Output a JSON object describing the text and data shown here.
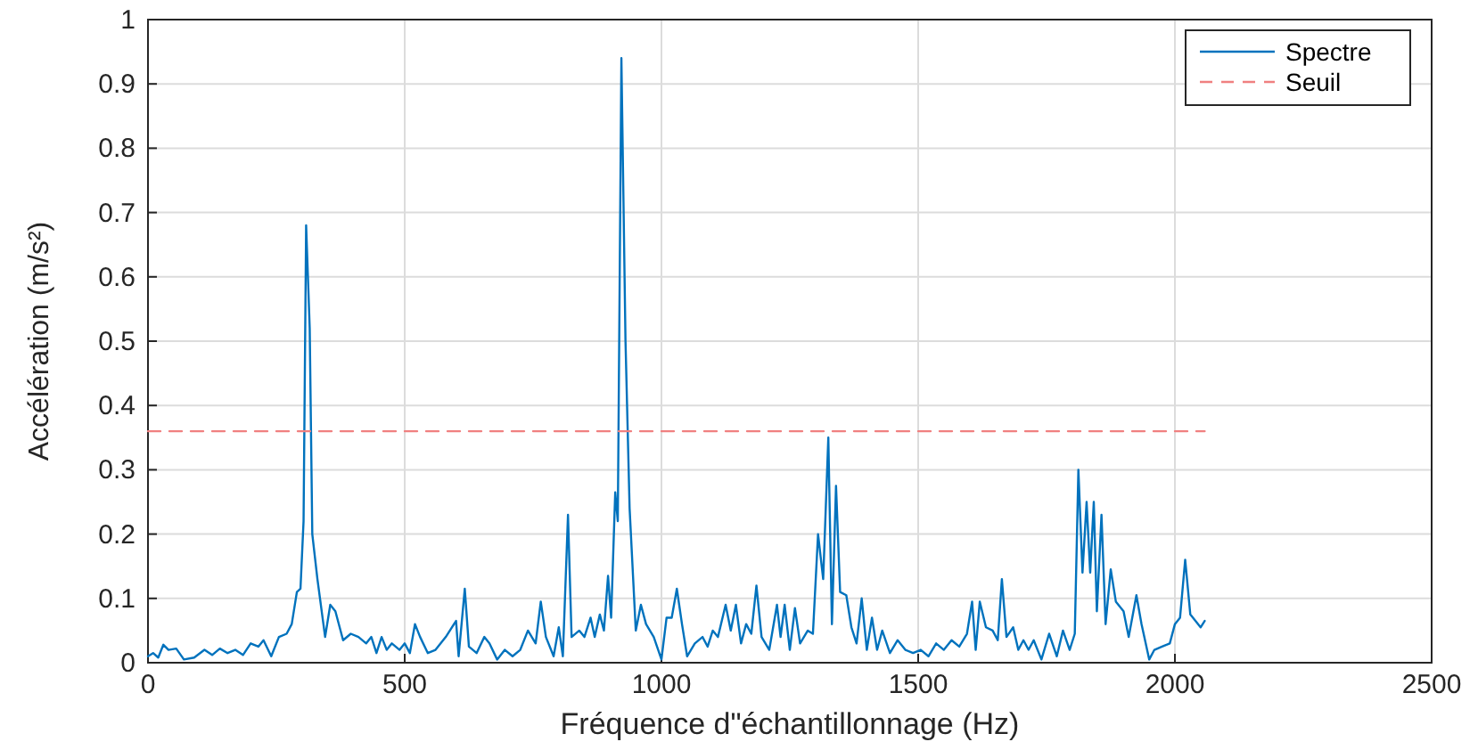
{
  "chart_data": {
    "type": "line",
    "xlabel": "Fréquence d\"échantillonnage (Hz)",
    "ylabel": "Accélération (m/s²)",
    "xlim": [
      0,
      2500
    ],
    "xticks": [
      0,
      500,
      1000,
      1500,
      2000,
      2500
    ],
    "ylim": [
      0,
      1
    ],
    "yticks": [
      0,
      0.1,
      0.2,
      0.3,
      0.4,
      0.5,
      0.6,
      0.7,
      0.8,
      0.9,
      1
    ],
    "grid": true,
    "legend": "top right",
    "marker": "none",
    "series": [
      {
        "name": "Spectre",
        "color": "#0072bd",
        "line_style": "solid",
        "x": [
          0,
          10,
          20,
          30,
          40,
          55,
          70,
          90,
          110,
          125,
          140,
          155,
          170,
          185,
          200,
          215,
          225,
          240,
          255,
          270,
          280,
          290,
          297,
          303,
          308,
          315,
          320,
          330,
          345,
          355,
          365,
          380,
          395,
          410,
          425,
          435,
          445,
          455,
          465,
          475,
          490,
          500,
          510,
          520,
          530,
          545,
          560,
          580,
          600,
          605,
          617,
          625,
          640,
          655,
          665,
          680,
          695,
          710,
          725,
          740,
          755,
          765,
          775,
          790,
          800,
          808,
          818,
          825,
          840,
          850,
          862,
          870,
          880,
          888,
          896,
          902,
          910,
          915,
          922,
          930,
          938,
          950,
          960,
          970,
          985,
          1000,
          1010,
          1020,
          1030,
          1040,
          1050,
          1065,
          1080,
          1090,
          1100,
          1110,
          1125,
          1135,
          1145,
          1155,
          1165,
          1175,
          1185,
          1195,
          1210,
          1225,
          1232,
          1240,
          1250,
          1260,
          1270,
          1285,
          1295,
          1305,
          1315,
          1325,
          1332,
          1340,
          1348,
          1360,
          1370,
          1380,
          1390,
          1400,
          1410,
          1420,
          1430,
          1445,
          1460,
          1475,
          1490,
          1505,
          1520,
          1535,
          1550,
          1565,
          1580,
          1595,
          1605,
          1612,
          1620,
          1632,
          1645,
          1655,
          1663,
          1672,
          1685,
          1695,
          1705,
          1715,
          1725,
          1740,
          1755,
          1770,
          1782,
          1795,
          1805,
          1812,
          1820,
          1828,
          1835,
          1842,
          1848,
          1857,
          1865,
          1875,
          1885,
          1900,
          1910,
          1925,
          1935,
          1950,
          1960,
          1975,
          1990,
          2000,
          2010,
          2020,
          2030,
          2040,
          2050,
          2058
        ],
        "values": [
          0.01,
          0.015,
          0.008,
          0.028,
          0.02,
          0.022,
          0.005,
          0.008,
          0.02,
          0.012,
          0.022,
          0.015,
          0.02,
          0.012,
          0.03,
          0.025,
          0.035,
          0.01,
          0.04,
          0.045,
          0.06,
          0.11,
          0.115,
          0.22,
          0.68,
          0.52,
          0.2,
          0.13,
          0.04,
          0.09,
          0.08,
          0.035,
          0.045,
          0.04,
          0.03,
          0.04,
          0.015,
          0.04,
          0.02,
          0.03,
          0.02,
          0.03,
          0.015,
          0.06,
          0.04,
          0.015,
          0.02,
          0.04,
          0.065,
          0.01,
          0.115,
          0.025,
          0.015,
          0.04,
          0.03,
          0.005,
          0.02,
          0.01,
          0.02,
          0.05,
          0.03,
          0.095,
          0.04,
          0.01,
          0.055,
          0.01,
          0.23,
          0.04,
          0.05,
          0.04,
          0.07,
          0.04,
          0.075,
          0.05,
          0.135,
          0.07,
          0.265,
          0.22,
          0.94,
          0.5,
          0.24,
          0.05,
          0.09,
          0.06,
          0.04,
          0.005,
          0.07,
          0.07,
          0.115,
          0.06,
          0.01,
          0.03,
          0.04,
          0.025,
          0.05,
          0.04,
          0.09,
          0.05,
          0.09,
          0.03,
          0.06,
          0.045,
          0.12,
          0.04,
          0.02,
          0.09,
          0.04,
          0.09,
          0.02,
          0.085,
          0.03,
          0.05,
          0.045,
          0.2,
          0.13,
          0.35,
          0.06,
          0.275,
          0.11,
          0.105,
          0.055,
          0.03,
          0.1,
          0.02,
          0.07,
          0.02,
          0.05,
          0.015,
          0.035,
          0.02,
          0.015,
          0.02,
          0.01,
          0.03,
          0.02,
          0.035,
          0.025,
          0.045,
          0.095,
          0.02,
          0.095,
          0.055,
          0.05,
          0.035,
          0.13,
          0.04,
          0.055,
          0.02,
          0.035,
          0.02,
          0.035,
          0.005,
          0.045,
          0.01,
          0.05,
          0.02,
          0.045,
          0.3,
          0.14,
          0.25,
          0.14,
          0.25,
          0.08,
          0.23,
          0.06,
          0.145,
          0.095,
          0.08,
          0.04,
          0.105,
          0.06,
          0.005,
          0.02,
          0.025,
          0.03,
          0.06,
          0.07,
          0.16,
          0.075,
          0.065,
          0.055,
          0.065
        ]
      },
      {
        "name": "Seuil",
        "color": "#f08080",
        "line_style": "dashed",
        "x": [
          0,
          2058
        ],
        "values": [
          0.36,
          0.36
        ]
      }
    ]
  }
}
